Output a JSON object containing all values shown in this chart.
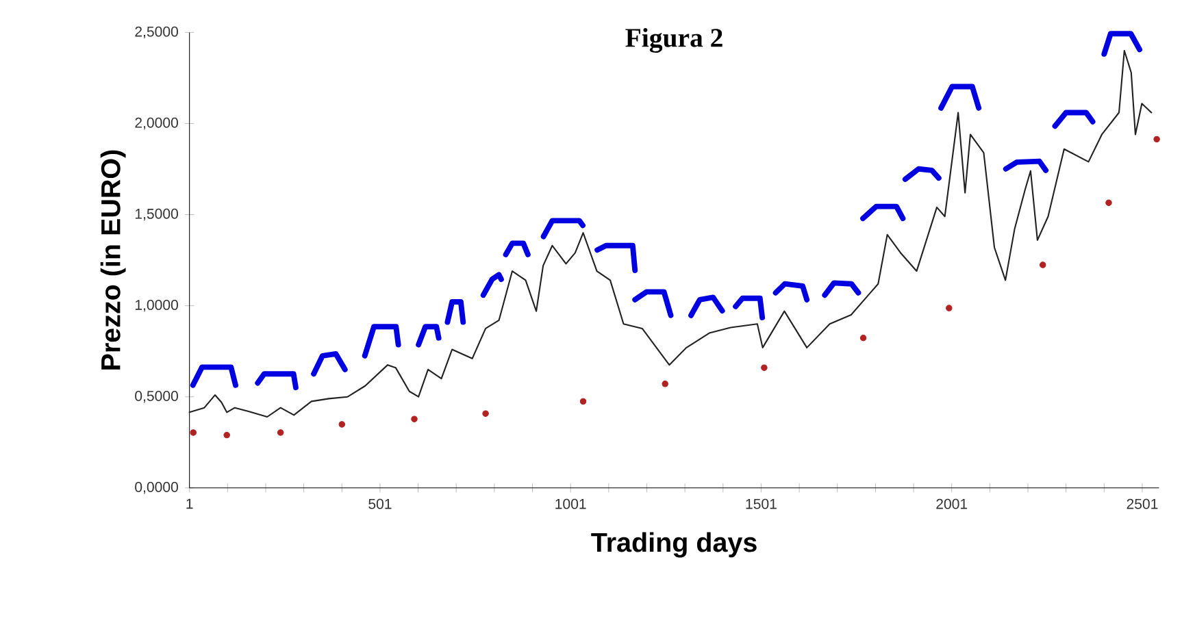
{
  "chart_data": {
    "type": "line",
    "title": "Figura 2",
    "xlabel": "Trading days",
    "ylabel": "Prezzo (in EURO)",
    "xlim": [
      1,
      2545
    ],
    "ylim": [
      0,
      2.5
    ],
    "xticks": [
      1,
      {
        "value": 101,
        "label": null
      },
      {
        "value": 201,
        "label": null
      },
      {
        "value": 301,
        "label": null
      },
      {
        "value": 401,
        "label": null
      },
      501,
      {
        "value": 601,
        "label": null
      },
      {
        "value": 701,
        "label": null
      },
      {
        "value": 801,
        "label": null
      },
      {
        "value": 901,
        "label": null
      },
      1001,
      {
        "value": 1101,
        "label": null
      },
      {
        "value": 1201,
        "label": null
      },
      {
        "value": 1301,
        "label": null
      },
      {
        "value": 1401,
        "label": null
      },
      1501,
      {
        "value": 1601,
        "label": null
      },
      {
        "value": 1701,
        "label": null
      },
      {
        "value": 1801,
        "label": null
      },
      {
        "value": 1901,
        "label": null
      },
      2001,
      {
        "value": 2101,
        "label": null
      },
      {
        "value": 2201,
        "label": null
      },
      {
        "value": 2301,
        "label": null
      },
      {
        "value": 2401,
        "label": null
      },
      2501
    ],
    "yticks": [
      {
        "value": 0,
        "label": "0,0000"
      },
      {
        "value": 0.5,
        "label": "0,5000"
      },
      {
        "value": 1,
        "label": "1,0000"
      },
      {
        "value": 1.5,
        "label": "1,5000"
      },
      {
        "value": 2,
        "label": "2,0000"
      },
      {
        "value": 2.5,
        "label": "2,5000"
      }
    ],
    "series": [
      {
        "color": "#222222",
        "x": [
          1,
          40,
          68,
          85,
          99,
          120,
          156,
          205,
          240,
          275,
          321,
          367,
          416,
          462,
          521,
          542,
          578,
          602,
          627,
          662,
          690,
          743,
          778,
          813,
          848,
          883,
          911,
          929,
          953,
          989,
          1013,
          1034,
          1070,
          1105,
          1140,
          1189,
          1260,
          1305,
          1365,
          1421,
          1491,
          1505,
          1562,
          1621,
          1681,
          1737,
          1808,
          1832,
          1867,
          1909,
          1962,
          1983,
          2018,
          2036,
          2050,
          2085,
          2113,
          2142,
          2166,
          2194,
          2208,
          2226,
          2254,
          2296,
          2360,
          2395,
          2440,
          2454,
          2472,
          2483,
          2500,
          2525
        ],
        "values": [
          0.415,
          0.44,
          0.51,
          0.47,
          0.415,
          0.44,
          0.42,
          0.39,
          0.44,
          0.4,
          0.475,
          0.49,
          0.5,
          0.56,
          0.675,
          0.66,
          0.53,
          0.5,
          0.65,
          0.6,
          0.76,
          0.71,
          0.875,
          0.92,
          1.19,
          1.14,
          0.97,
          1.22,
          1.33,
          1.23,
          1.29,
          1.4,
          1.19,
          1.14,
          0.9,
          0.875,
          0.675,
          0.77,
          0.85,
          0.88,
          0.9,
          0.77,
          0.97,
          0.77,
          0.9,
          0.95,
          1.12,
          1.39,
          1.29,
          1.19,
          1.54,
          1.49,
          2.06,
          1.62,
          1.94,
          1.84,
          1.32,
          1.14,
          1.42,
          1.64,
          1.74,
          1.36,
          1.49,
          1.86,
          1.79,
          1.94,
          2.06,
          2.4,
          2.28,
          1.94,
          2.11,
          2.06
        ]
      },
      {
        "color": "#0000e0",
        "x": [
          10,
          34,
          110,
          122,
          null,
          180,
          197,
          274,
          280,
          null,
          327,
          350,
          385,
          409,
          null,
          461,
          485,
          543,
          549,
          null,
          602,
          620,
          649,
          655,
          null,
          678,
          690,
          713,
          719,
          null,
          772,
          795,
          813,
          819,
          null,
          831,
          848,
          877,
          889,
          null,
          930,
          953,
          1024,
          1033,
          null,
          1071,
          1094,
          1164,
          1170,
          null,
          1170,
          1200,
          1246,
          1264,
          null,
          1317,
          1340,
          1375,
          1399,
          null,
          1434,
          1452,
          1498,
          1504,
          null,
          1539,
          1563,
          1610,
          1621,
          null,
          1668,
          1692,
          1738,
          1756,
          null,
          1768,
          1803,
          1856,
          1873,
          null,
          1879,
          1914,
          1949,
          1967,
          null,
          1973,
          2002,
          2055,
          2072,
          null,
          2143,
          2172,
          2231,
          2248,
          null,
          2272,
          2301,
          2354,
          2371,
          null,
          2401,
          2418,
          2471,
          2494
        ],
        "values": [
          0.564,
          0.663,
          0.663,
          0.564,
          null,
          0.576,
          0.626,
          0.626,
          0.551,
          null,
          0.626,
          0.725,
          0.736,
          0.65,
          null,
          0.725,
          0.885,
          0.885,
          0.786,
          null,
          0.786,
          0.885,
          0.885,
          0.823,
          null,
          0.91,
          1.021,
          1.021,
          0.91,
          null,
          1.058,
          1.145,
          1.17,
          1.145,
          null,
          1.281,
          1.343,
          1.343,
          1.281,
          null,
          1.38,
          1.467,
          1.467,
          1.441,
          null,
          1.306,
          1.33,
          1.33,
          1.194,
          null,
          1.033,
          1.076,
          1.076,
          0.947,
          null,
          0.947,
          1.033,
          1.046,
          0.972,
          null,
          0.996,
          1.041,
          1.041,
          0.935,
          null,
          1.071,
          1.12,
          1.108,
          1.033,
          null,
          1.058,
          1.125,
          1.12,
          1.071,
          null,
          1.479,
          1.545,
          1.545,
          1.479,
          null,
          1.694,
          1.751,
          1.743,
          1.701,
          null,
          2.085,
          2.203,
          2.203,
          2.085,
          null,
          1.751,
          1.788,
          1.793,
          1.743,
          null,
          1.986,
          2.06,
          2.06,
          2.01,
          null,
          2.381,
          2.493,
          2.493,
          2.406
        ]
      },
      {
        "type": "scatter",
        "color": "#b22222",
        "x": [
          11,
          99,
          240,
          401,
          591,
          778,
          1034,
          1249,
          1509,
          1769,
          1994,
          2240,
          2413,
          2539
        ],
        "values": [
          0.304,
          0.29,
          0.304,
          0.349,
          0.378,
          0.408,
          0.475,
          0.571,
          0.66,
          0.823,
          0.987,
          1.224,
          1.565,
          1.914
        ]
      }
    ]
  }
}
